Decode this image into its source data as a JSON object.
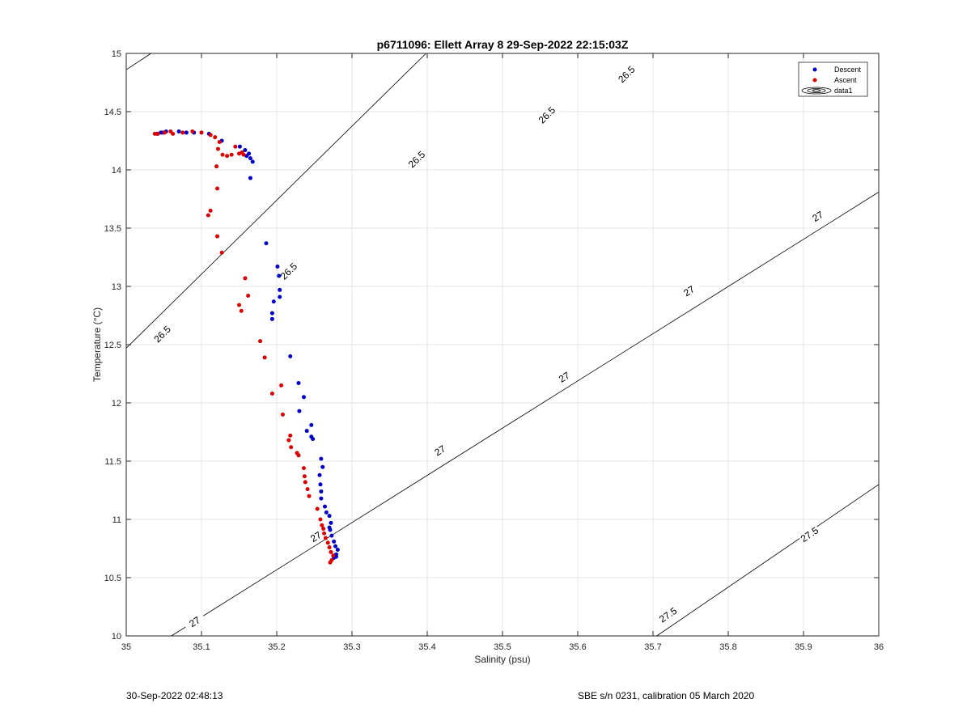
{
  "chart_data": {
    "type": "scatter",
    "title": "p6711096: Ellett Array 8 29-Sep-2022 22:15:03Z",
    "xlabel": "Salinity (psu)",
    "ylabel": "Temperature (°C)",
    "xlim": [
      35,
      36
    ],
    "ylim": [
      10,
      15
    ],
    "xticks": [
      "35",
      "35.1",
      "35.2",
      "35.3",
      "35.4",
      "35.5",
      "35.6",
      "35.7",
      "35.8",
      "35.9",
      "36"
    ],
    "yticks": [
      "10",
      "10.5",
      "11",
      "11.5",
      "12",
      "12.5",
      "13",
      "13.5",
      "14",
      "14.5",
      "15"
    ],
    "grid": true,
    "legend_position": "top-right",
    "legend": [
      "Descent",
      "Ascent",
      "data1"
    ],
    "series": [
      {
        "name": "Descent",
        "color": "#0000cc",
        "points": [
          [
            35.041,
            14.31
          ],
          [
            35.046,
            14.32
          ],
          [
            35.049,
            14.32
          ],
          [
            35.053,
            14.33
          ],
          [
            35.07,
            14.33
          ],
          [
            35.08,
            14.32
          ],
          [
            35.09,
            14.32
          ],
          [
            35.11,
            14.31
          ],
          [
            35.127,
            14.25
          ],
          [
            35.151,
            14.2
          ],
          [
            35.158,
            14.17
          ],
          [
            35.16,
            14.12
          ],
          [
            35.163,
            14.14
          ],
          [
            35.165,
            14.1
          ],
          [
            35.168,
            14.07
          ],
          [
            35.165,
            13.93
          ],
          [
            35.186,
            13.37
          ],
          [
            35.201,
            13.17
          ],
          [
            35.203,
            13.09
          ],
          [
            35.204,
            12.97
          ],
          [
            35.204,
            12.91
          ],
          [
            35.194,
            12.77
          ],
          [
            35.196,
            12.87
          ],
          [
            35.194,
            12.72
          ],
          [
            35.218,
            12.4
          ],
          [
            35.229,
            12.17
          ],
          [
            35.236,
            12.05
          ],
          [
            35.23,
            11.93
          ],
          [
            35.246,
            11.81
          ],
          [
            35.24,
            11.76
          ],
          [
            35.246,
            11.71
          ],
          [
            35.248,
            11.69
          ],
          [
            35.259,
            11.52
          ],
          [
            35.261,
            11.45
          ],
          [
            35.257,
            11.38
          ],
          [
            35.258,
            11.3
          ],
          [
            35.259,
            11.24
          ],
          [
            35.259,
            11.18
          ],
          [
            35.264,
            11.11
          ],
          [
            35.266,
            11.06
          ],
          [
            35.27,
            11.03
          ],
          [
            35.272,
            10.97
          ],
          [
            35.27,
            10.93
          ],
          [
            35.271,
            10.91
          ],
          [
            35.273,
            10.86
          ],
          [
            35.276,
            10.81
          ],
          [
            35.278,
            10.77
          ],
          [
            35.281,
            10.74
          ],
          [
            35.279,
            10.7
          ],
          [
            35.276,
            10.67
          ],
          [
            35.279,
            10.68
          ]
        ]
      },
      {
        "name": "Ascent",
        "color": "#dd0000",
        "points": [
          [
            35.038,
            14.31
          ],
          [
            35.042,
            14.31
          ],
          [
            35.051,
            14.32
          ],
          [
            35.059,
            14.33
          ],
          [
            35.062,
            14.31
          ],
          [
            35.075,
            14.32
          ],
          [
            35.088,
            14.33
          ],
          [
            35.1,
            14.32
          ],
          [
            35.112,
            14.3
          ],
          [
            35.118,
            14.28
          ],
          [
            35.124,
            14.24
          ],
          [
            35.122,
            14.18
          ],
          [
            35.128,
            14.13
          ],
          [
            35.134,
            14.12
          ],
          [
            35.14,
            14.13
          ],
          [
            35.145,
            14.2
          ],
          [
            35.15,
            14.14
          ],
          [
            35.154,
            14.15
          ],
          [
            35.156,
            14.13
          ],
          [
            35.12,
            14.03
          ],
          [
            35.121,
            13.84
          ],
          [
            35.112,
            13.65
          ],
          [
            35.109,
            13.61
          ],
          [
            35.121,
            13.43
          ],
          [
            35.127,
            13.29
          ],
          [
            35.158,
            13.07
          ],
          [
            35.162,
            12.92
          ],
          [
            35.15,
            12.84
          ],
          [
            35.153,
            12.79
          ],
          [
            35.178,
            12.53
          ],
          [
            35.184,
            12.39
          ],
          [
            35.206,
            12.15
          ],
          [
            35.194,
            12.08
          ],
          [
            35.208,
            11.9
          ],
          [
            35.218,
            11.72
          ],
          [
            35.216,
            11.68
          ],
          [
            35.219,
            11.62
          ],
          [
            35.227,
            11.57
          ],
          [
            35.229,
            11.55
          ],
          [
            35.236,
            11.44
          ],
          [
            35.237,
            11.37
          ],
          [
            35.238,
            11.32
          ],
          [
            35.241,
            11.26
          ],
          [
            35.243,
            11.2
          ],
          [
            35.254,
            11.09
          ],
          [
            35.258,
            11.0
          ],
          [
            35.26,
            10.95
          ],
          [
            35.262,
            10.92
          ],
          [
            35.263,
            10.88
          ],
          [
            35.265,
            10.84
          ],
          [
            35.268,
            10.8
          ],
          [
            35.27,
            10.76
          ],
          [
            35.272,
            10.72
          ],
          [
            35.275,
            10.69
          ],
          [
            35.273,
            10.65
          ],
          [
            35.271,
            10.63
          ]
        ]
      }
    ],
    "contours": [
      {
        "level": "26.5",
        "points": [
          [
            35.0,
            12.47
          ],
          [
            36.0,
            18.82
          ]
        ],
        "labels": [
          [
            35.048,
            12.59
          ],
          [
            35.216,
            13.13
          ],
          [
            35.386,
            14.09
          ],
          [
            35.559,
            14.47
          ],
          [
            35.665,
            14.82
          ]
        ]
      },
      {
        "level": "26.5",
        "points": [
          [
            35.0,
            14.86
          ],
          [
            35.033,
            15.0
          ]
        ],
        "labels": []
      },
      {
        "level": "27",
        "points": [
          [
            35.06,
            10.0
          ],
          [
            36.0,
            13.81
          ]
        ],
        "labels": [
          [
            35.091,
            10.12
          ],
          [
            35.252,
            10.85
          ],
          [
            35.417,
            11.59
          ],
          [
            35.582,
            12.22
          ],
          [
            35.748,
            12.96
          ],
          [
            35.919,
            13.6
          ]
        ]
      },
      {
        "level": "27.5",
        "points": [
          [
            35.705,
            10.0
          ],
          [
            36.0,
            11.3
          ]
        ],
        "labels": [
          [
            35.72,
            10.18
          ],
          [
            35.908,
            10.87
          ]
        ]
      }
    ]
  },
  "footer": {
    "left": "30-Sep-2022 02:48:13",
    "right": "SBE s/n 0231, calibration 05 March 2020"
  }
}
